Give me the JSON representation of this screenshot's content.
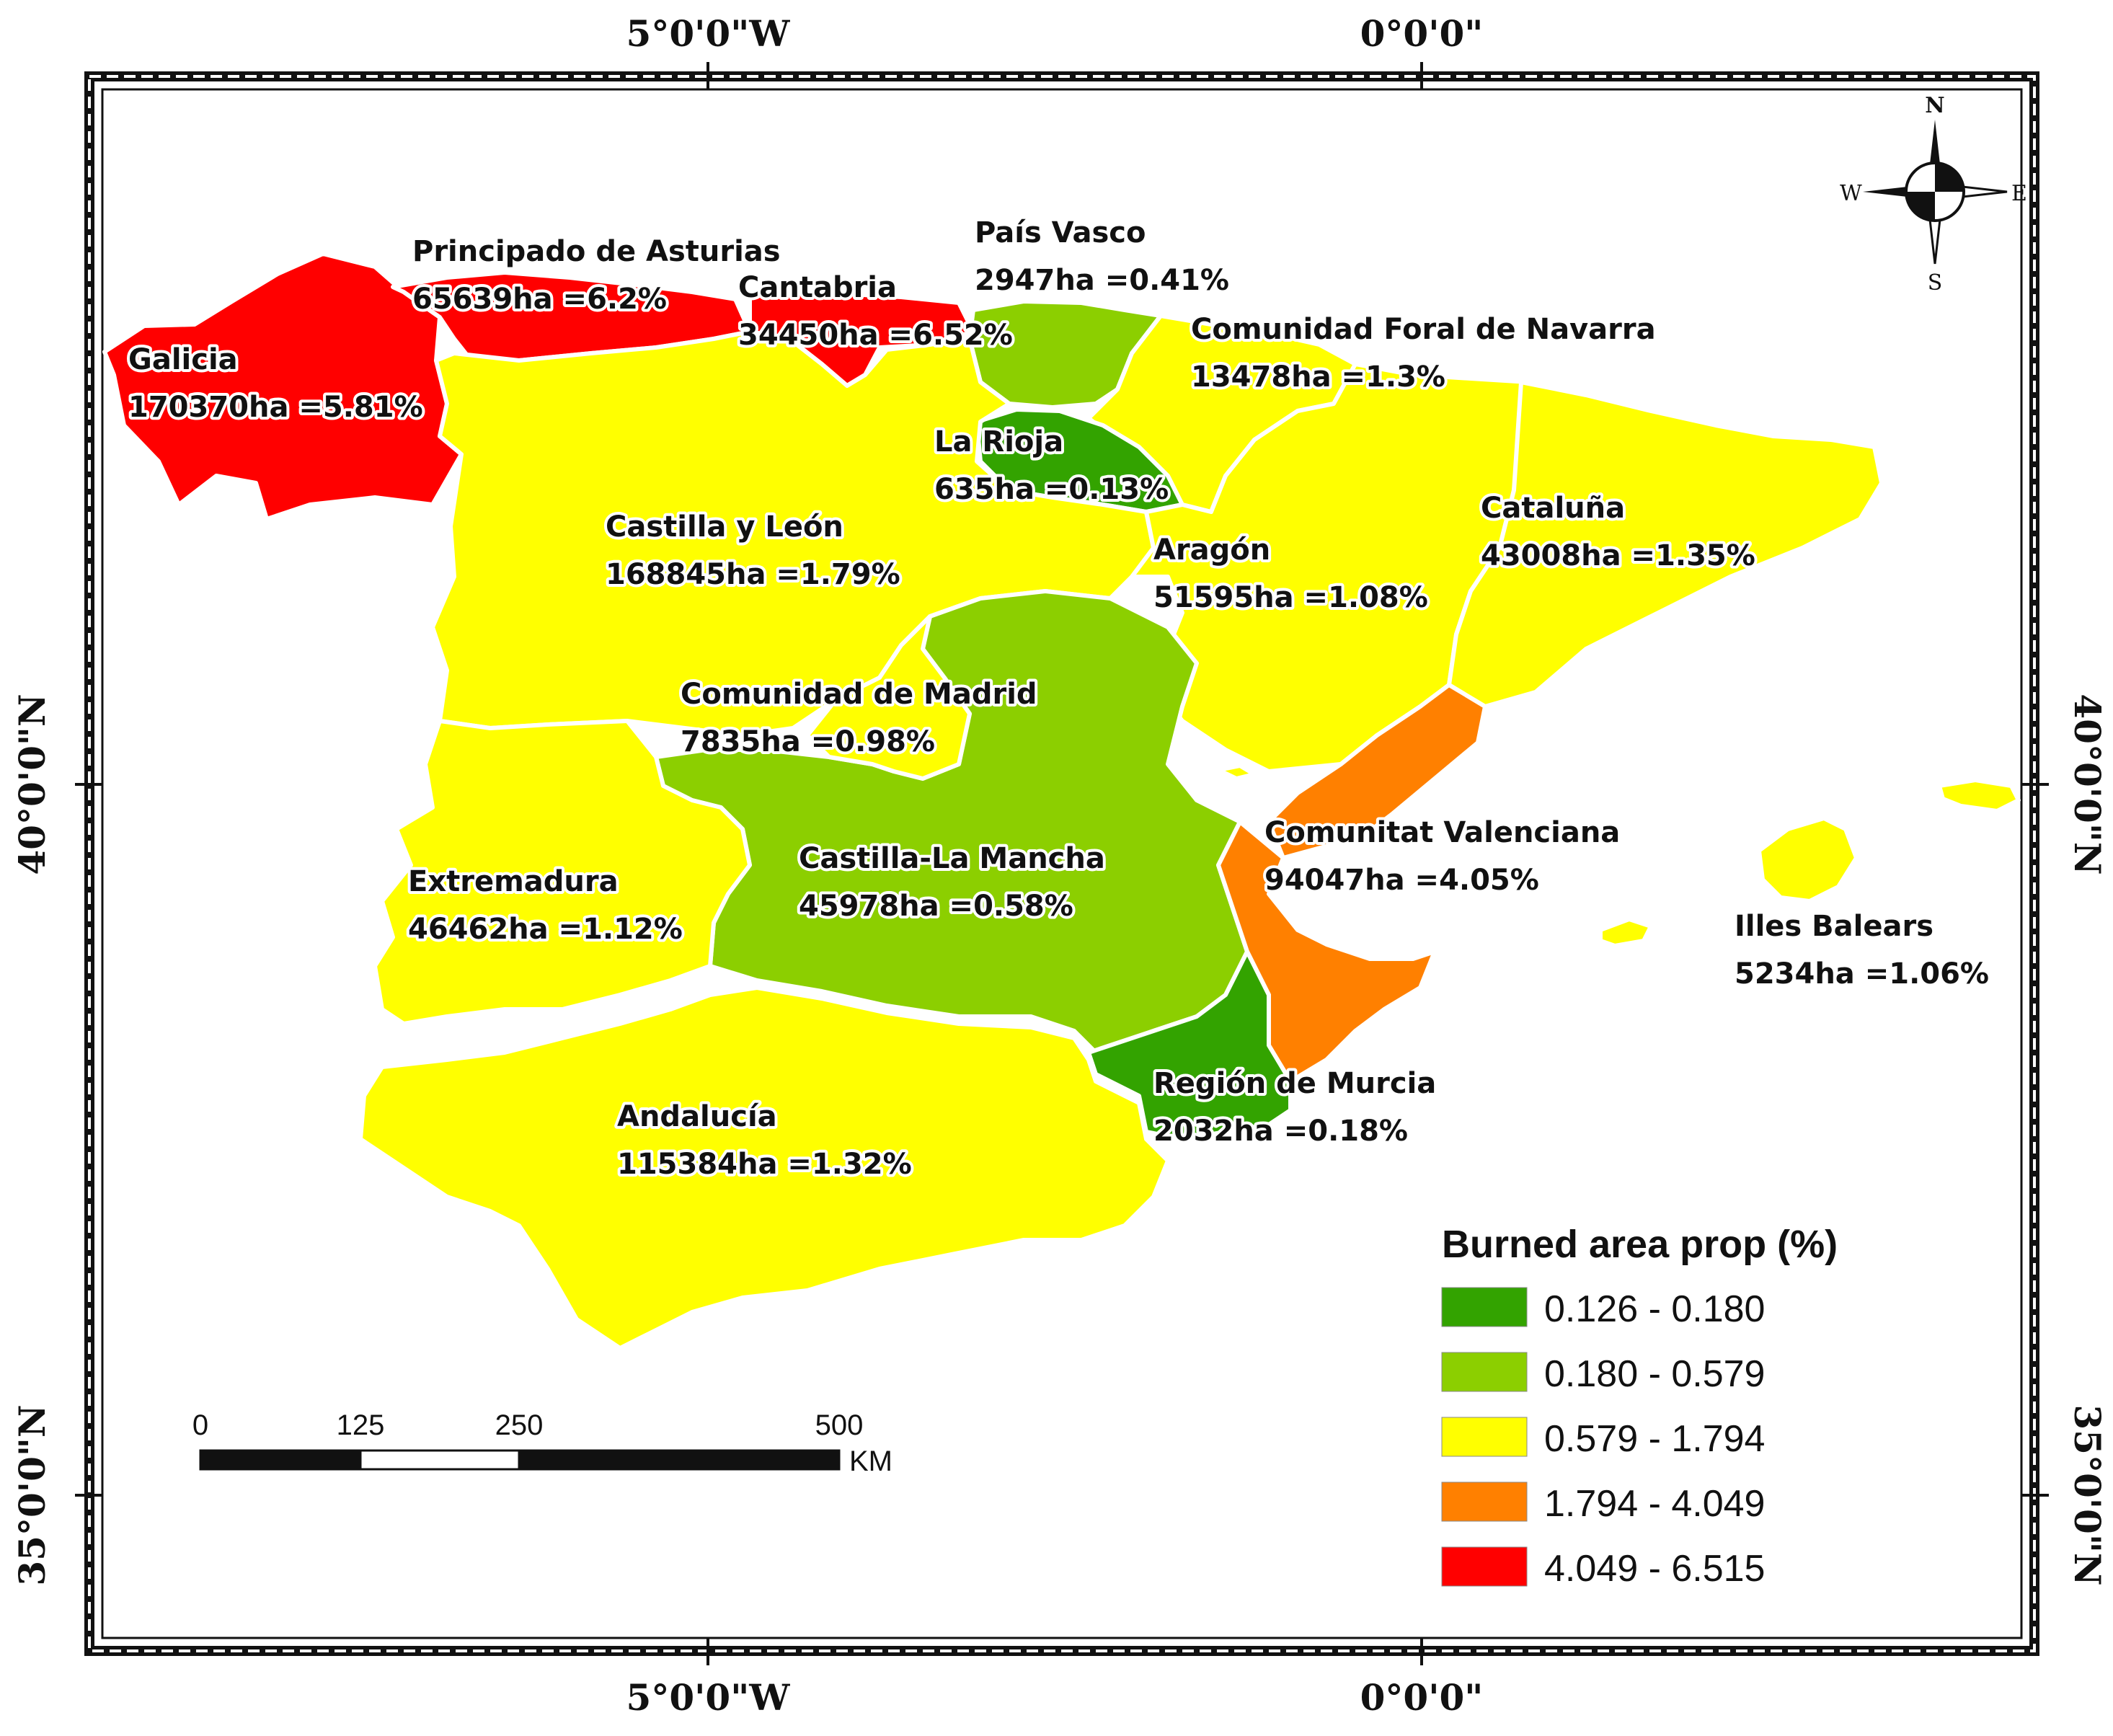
{
  "colors": {
    "class1": "#33a300",
    "class2": "#8ccf00",
    "class3": "#ffff00",
    "class4": "#ff8000",
    "class5": "#ff0000",
    "frame": "#111111",
    "background": "#ffffff"
  },
  "coordinates": {
    "top": [
      "5°0'0\"W",
      "0°0'0\""
    ],
    "bottom": [
      "5°0'0\"W",
      "0°0'0\""
    ],
    "left": [
      "40°0'0\"N",
      "35°0'0\"N"
    ],
    "right": [
      "40°0'0\"N",
      "35°0'0\"N"
    ]
  },
  "compass": {
    "n": "N",
    "s": "S",
    "e": "E",
    "w": "W"
  },
  "regions": [
    {
      "key": "galicia",
      "name": "Galicia",
      "value": "170370ha =5.81%",
      "pct": 5.81,
      "class": "class5"
    },
    {
      "key": "asturias",
      "name": "Principado de Asturias",
      "value": "65639ha =6.2%",
      "pct": 6.2,
      "class": "class5"
    },
    {
      "key": "cantabria",
      "name": "Cantabria",
      "value": "34450ha =6.52%",
      "pct": 6.52,
      "class": "class5"
    },
    {
      "key": "pais-vasco",
      "name": "País Vasco",
      "value": "2947ha =0.41%",
      "pct": 0.41,
      "class": "class2"
    },
    {
      "key": "navarra",
      "name": "Comunidad Foral de Navarra",
      "value": "13478ha =1.3%",
      "pct": 1.3,
      "class": "class3"
    },
    {
      "key": "la-rioja",
      "name": "La Rioja",
      "value": "635ha =0.13%",
      "pct": 0.13,
      "class": "class1"
    },
    {
      "key": "castilla-leon",
      "name": "Castilla y León",
      "value": "168845ha =1.79%",
      "pct": 1.79,
      "class": "class3"
    },
    {
      "key": "aragon",
      "name": "Aragón",
      "value": "51595ha =1.08%",
      "pct": 1.08,
      "class": "class3"
    },
    {
      "key": "cataluna",
      "name": "Cataluña",
      "value": "43008ha =1.35%",
      "pct": 1.35,
      "class": "class3"
    },
    {
      "key": "madrid",
      "name": "Comunidad de Madrid",
      "value": "7835ha =0.98%",
      "pct": 0.98,
      "class": "class3"
    },
    {
      "key": "castilla-mancha",
      "name": "Castilla-La Mancha",
      "value": "45978ha =0.58%",
      "pct": 0.58,
      "class": "class2"
    },
    {
      "key": "valenciana",
      "name": "Comunitat Valenciana",
      "value": "94047ha =4.05%",
      "pct": 4.05,
      "class": "class4"
    },
    {
      "key": "extremadura",
      "name": "Extremadura",
      "value": "46462ha =1.12%",
      "pct": 1.12,
      "class": "class3"
    },
    {
      "key": "baleares",
      "name": "Illes Balears",
      "value": "5234ha =1.06%",
      "pct": 1.06,
      "class": "class3"
    },
    {
      "key": "murcia",
      "name": "Región de Murcia",
      "value": "2032ha =0.18%",
      "pct": 0.18,
      "class": "class1"
    },
    {
      "key": "andalucia",
      "name": "Andalucía",
      "value": "115384ha =1.32%",
      "pct": 1.32,
      "class": "class3"
    }
  ],
  "legend": {
    "title": "Burned area prop (%)",
    "items": [
      {
        "label": "0.126 - 0.180",
        "class": "class1"
      },
      {
        "label": "0.180 - 0.579",
        "class": "class2"
      },
      {
        "label": "0.579 - 1.794",
        "class": "class3"
      },
      {
        "label": "1.794 - 4.049",
        "class": "class4"
      },
      {
        "label": "4.049 - 6.515",
        "class": "class5"
      }
    ]
  },
  "scale_bar": {
    "ticks": [
      "0",
      "125",
      "250",
      "500"
    ],
    "unit": "KM"
  }
}
